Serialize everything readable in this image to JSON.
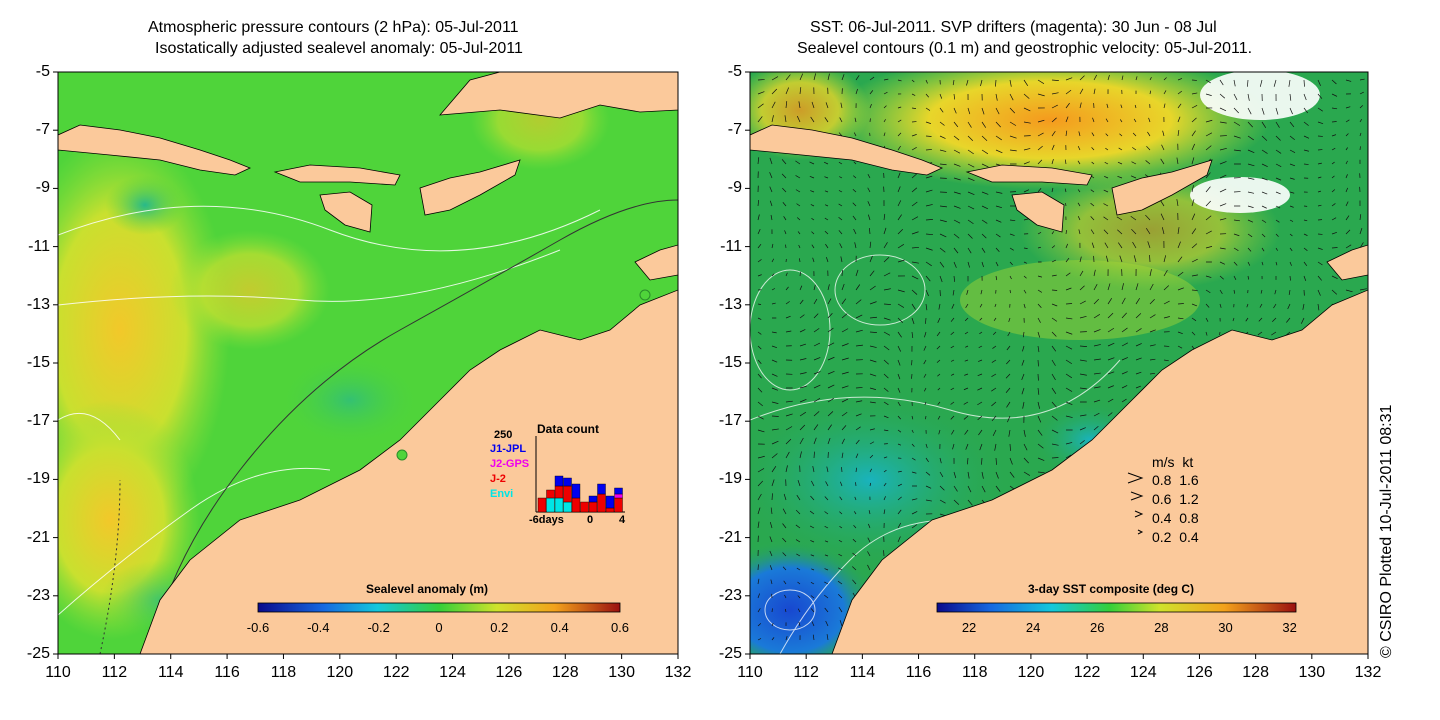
{
  "left_map": {
    "title_line1": "Atmospheric pressure contours (2 hPa): 05-Jul-2011",
    "title_line2": "Isostatically adjusted sealevel anomaly: 05-Jul-2011",
    "y_ticks": [
      "-5",
      "-7",
      "-9",
      "-11",
      "-13",
      "-15",
      "-17",
      "-19",
      "-21",
      "-23",
      "-25"
    ],
    "x_ticks": [
      "110",
      "112",
      "114",
      "116",
      "118",
      "120",
      "122",
      "124",
      "126",
      "128",
      "130",
      "132"
    ],
    "colorbar": {
      "title": "Sealevel anomaly (m)",
      "ticks": [
        "-0.6",
        "-0.4",
        "-0.2",
        "0",
        "0.2",
        "0.4",
        "0.6"
      ],
      "range": [
        -0.6,
        0.6
      ]
    },
    "data_count": {
      "title": "Data count",
      "max_label": "250",
      "x_start": "-6days",
      "x_mid": "0",
      "x_end": "4",
      "legend": [
        {
          "label": "J1-JPL",
          "color": "#0000ee"
        },
        {
          "label": "J2-GPS",
          "color": "#ee00ee"
        },
        {
          "label": "J-2",
          "color": "#ee0000"
        },
        {
          "label": "Envi",
          "color": "#00e5e5"
        }
      ]
    }
  },
  "right_map": {
    "title_line1": "SST: 06-Jul-2011. SVP drifters (magenta): 30 Jun - 08 Jul",
    "title_line2": "Sealevel contours (0.1 m) and geostrophic velocity: 05-Jul-2011.",
    "y_ticks": [
      "-5",
      "-7",
      "-9",
      "-11",
      "-13",
      "-15",
      "-17",
      "-19",
      "-21",
      "-23",
      "-25"
    ],
    "x_ticks": [
      "110",
      "112",
      "114",
      "116",
      "118",
      "120",
      "122",
      "124",
      "126",
      "128",
      "130",
      "132"
    ],
    "colorbar": {
      "title": "3-day SST composite (deg C)",
      "ticks": [
        "22",
        "24",
        "26",
        "28",
        "30",
        "32"
      ],
      "range": [
        21,
        32.2
      ]
    },
    "velocity_legend": {
      "header": "m/s  kt",
      "rows": [
        "0.8  1.6",
        "0.6  1.2",
        "0.4  0.8",
        "0.2  0.4"
      ]
    }
  },
  "credit": "© CSIRO Plotted 10-Jul-2011 08:31",
  "colors": {
    "land": "#fbc99b",
    "left_ocean": "#4fd43a",
    "right_ocean": "#2aa84f"
  }
}
